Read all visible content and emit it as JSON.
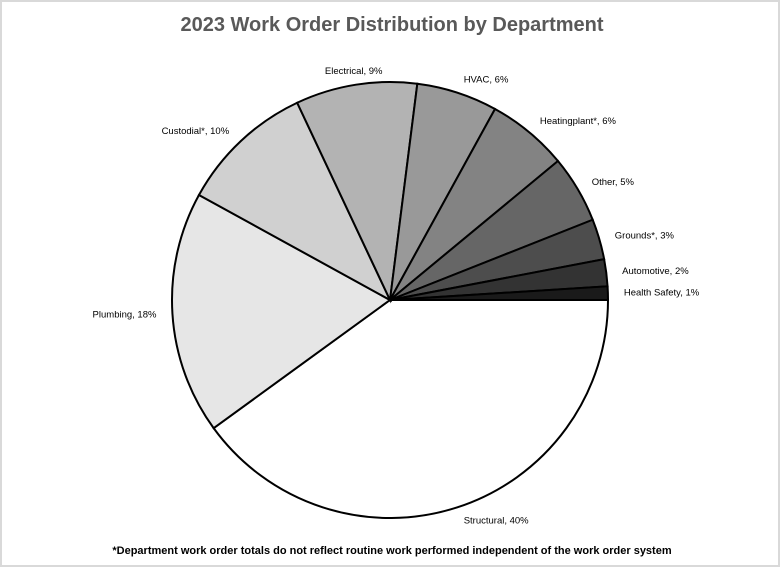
{
  "chart_data": {
    "type": "pie",
    "title": "2023 Work Order Distribution by Department",
    "footnote": "*Department work order totals do not reflect routine work performed independent of the work order system",
    "slices": [
      {
        "label": "Structural, 40%",
        "category": "Structural",
        "value": 40,
        "color": "#ffffff"
      },
      {
        "label": "Plumbing, 18%",
        "category": "Plumbing",
        "value": 18,
        "color": "#e6e6e6"
      },
      {
        "label": "Custodial*, 10%",
        "category": "Custodial*",
        "value": 10,
        "color": "#d0d0d0"
      },
      {
        "label": "Electrical, 9%",
        "category": "Electrical",
        "value": 9,
        "color": "#b3b3b3"
      },
      {
        "label": "HVAC, 6%",
        "category": "HVAC",
        "value": 6,
        "color": "#999999"
      },
      {
        "label": "Heatingplant*, 6%",
        "category": "Heatingplant*",
        "value": 6,
        "color": "#838383"
      },
      {
        "label": "Other, 5%",
        "category": "Other",
        "value": 5,
        "color": "#666666"
      },
      {
        "label": "Grounds*, 3%",
        "category": "Grounds*",
        "value": 3,
        "color": "#4d4d4d"
      },
      {
        "label": "Automotive, 2%",
        "category": "Automotive",
        "value": 2,
        "color": "#333333"
      },
      {
        "label": "Health Safety, 1%",
        "category": "Health Safety",
        "value": 1,
        "color": "#1a1a1a"
      }
    ]
  }
}
